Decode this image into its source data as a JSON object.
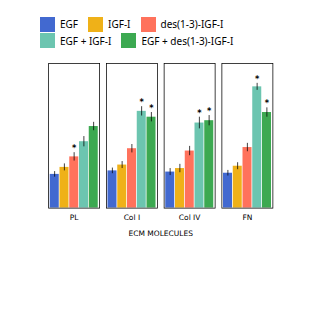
{
  "chart_data": {
    "type": "bar",
    "xlabel": "ECM MOLECULES",
    "categories": [
      "PL",
      "Col I",
      "Col IV",
      "FN"
    ],
    "series": [
      {
        "name": "EGF",
        "values": [
          1.45,
          1.6,
          1.55,
          1.5
        ],
        "errors": [
          0.12,
          0.12,
          0.15,
          0.12
        ],
        "significance": [
          false,
          false,
          false,
          false
        ]
      },
      {
        "name": "IGF-I",
        "values": [
          1.75,
          1.85,
          1.7,
          1.8
        ],
        "errors": [
          0.15,
          0.15,
          0.18,
          0.15
        ],
        "significance": [
          false,
          false,
          false,
          false
        ]
      },
      {
        "name": "des(1-3)-IGF-I",
        "values": [
          2.2,
          2.55,
          2.45,
          2.6
        ],
        "errors": [
          0.18,
          0.18,
          0.2,
          0.18
        ],
        "significance": [
          true,
          false,
          false,
          false
        ]
      },
      {
        "name": "EGF + IGF-I",
        "values": [
          2.85,
          4.15,
          3.65,
          5.2
        ],
        "errors": [
          0.22,
          0.2,
          0.25,
          0.15
        ],
        "significance": [
          false,
          true,
          true,
          true
        ]
      },
      {
        "name": "EGF + des(1-3)-IGF-I",
        "values": [
          3.5,
          3.9,
          3.75,
          4.1
        ],
        "errors": [
          0.18,
          0.2,
          0.22,
          0.2
        ],
        "significance": [
          false,
          true,
          true,
          true
        ]
      }
    ],
    "significance_label": "*",
    "ylim": [
      0,
      6.2
    ],
    "tick_labels": "x",
    "legend": "upper left"
  }
}
